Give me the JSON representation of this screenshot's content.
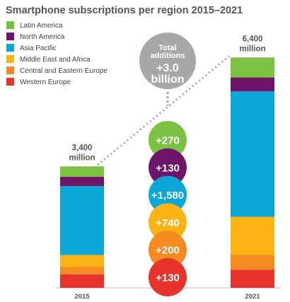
{
  "chart_data": {
    "type": "bar",
    "title": "Smartphone subscriptions per region 2015–2021",
    "categories": [
      "2015",
      "2021"
    ],
    "unit": "million",
    "series": [
      {
        "name": "Western Europe",
        "color": "#e8322c",
        "values": [
          380,
          510
        ]
      },
      {
        "name": "Central and Eastern Europe",
        "color": "#f58a1f",
        "values": [
          210,
          410
        ]
      },
      {
        "name": "Middle East and Africa",
        "color": "#fbb413",
        "values": [
          330,
          1070
        ]
      },
      {
        "name": "Asia Pacific",
        "color": "#0aa7d8",
        "values": [
          1930,
          3510
        ]
      },
      {
        "name": "North America",
        "color": "#6e1469",
        "values": [
          260,
          390
        ]
      },
      {
        "name": "Latin America",
        "color": "#7cc242",
        "values": [
          290,
          560
        ]
      }
    ],
    "legend_order": [
      "Latin America",
      "North America",
      "Asia Pacific",
      "Middle East and Africa",
      "Central and Eastern Europe",
      "Western Europe"
    ],
    "legend_position": "top-left",
    "total_labels": [
      {
        "value": "3,400",
        "unit": "million"
      },
      {
        "value": "6,400",
        "unit": "million"
      }
    ],
    "total_additions": {
      "line1": "Total",
      "line2": "additions",
      "value": "+3.0",
      "unit": "billion",
      "color": "#a7a7a7"
    },
    "additions": [
      {
        "series": "Latin America",
        "label": "+270",
        "color": "#7cc242"
      },
      {
        "series": "North America",
        "label": "+130",
        "color": "#6e1469"
      },
      {
        "series": "Asia Pacific",
        "label": "+1,580",
        "color": "#0aa7d8"
      },
      {
        "series": "Middle East and Africa",
        "label": "+740",
        "color": "#fbb413"
      },
      {
        "series": "Central and Eastern Europe",
        "label": "+200",
        "color": "#f58a1f"
      },
      {
        "series": "Western Europe",
        "label": "+130",
        "color": "#e8322c"
      }
    ],
    "grid": false
  }
}
